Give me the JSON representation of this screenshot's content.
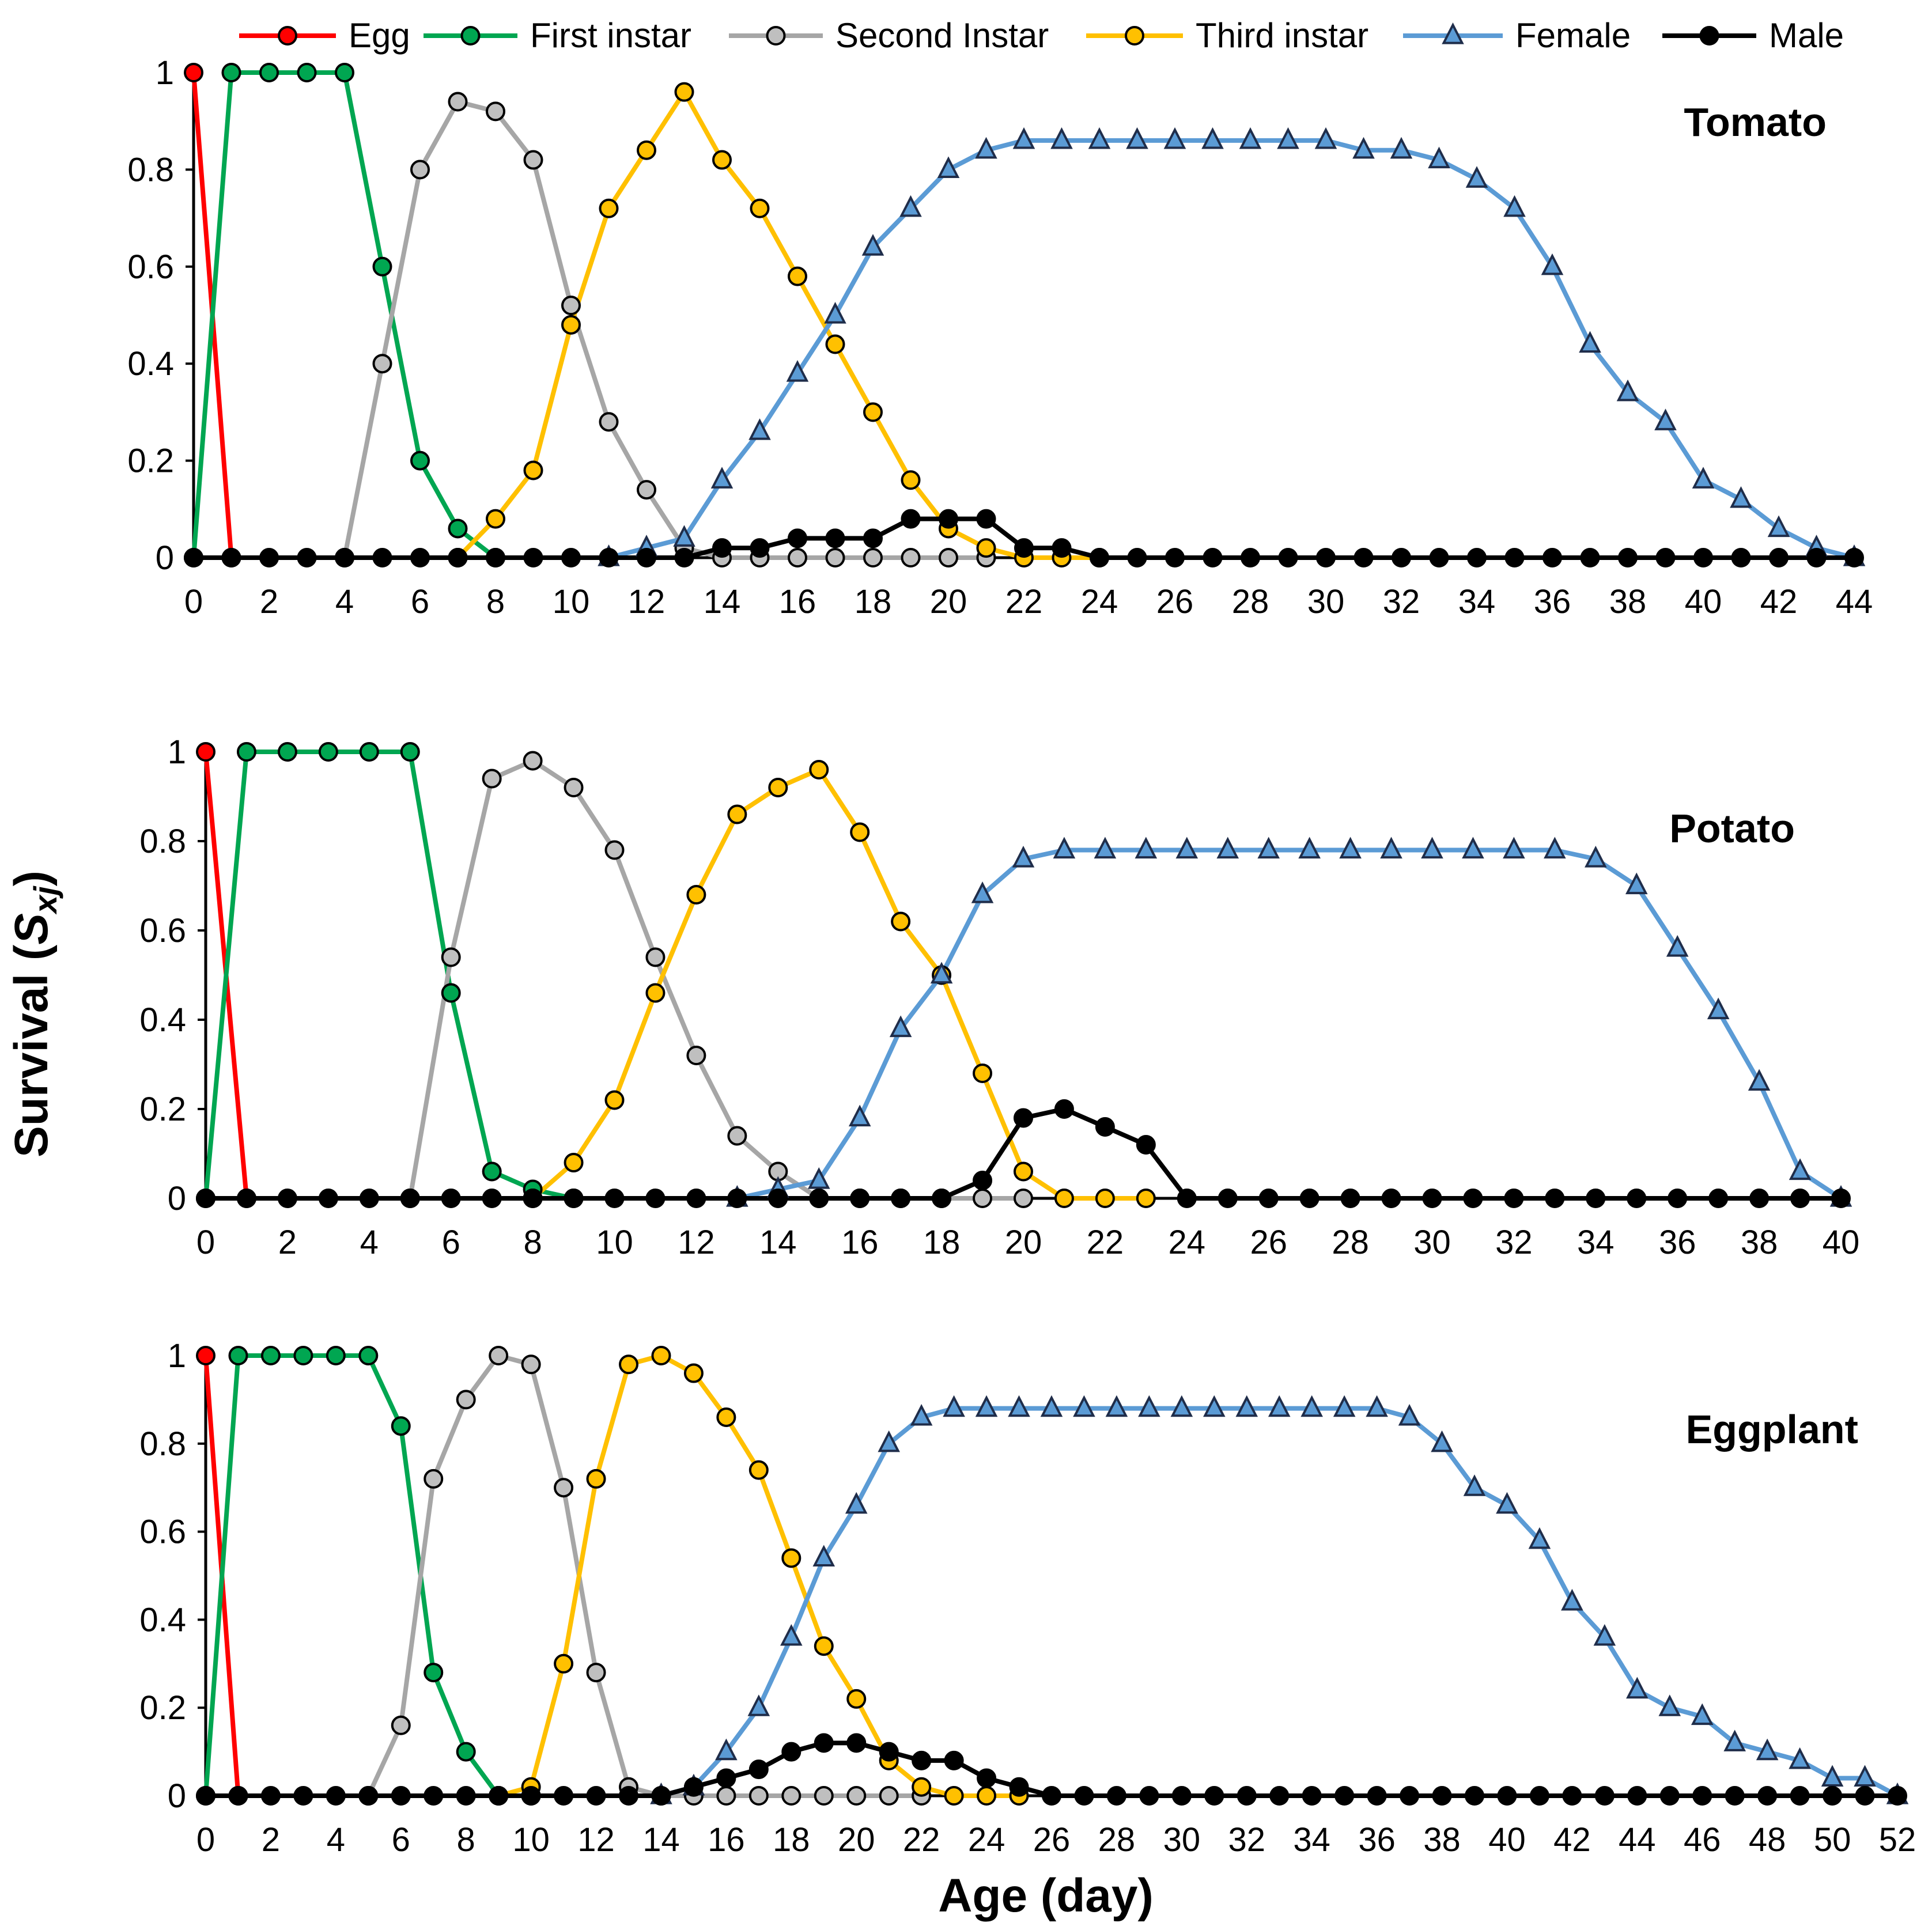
{
  "chart_data": {
    "type": "line",
    "title": "",
    "xlabel": "Age (day)",
    "ylabel": "Survival",
    "ylabel_symbol": "S",
    "ylabel_subscript": "xj",
    "yticks": [
      "0",
      "0.2",
      "0.4",
      "0.6",
      "0.8",
      "1"
    ],
    "ylim": [
      0,
      1
    ],
    "grid": false,
    "legend_position": "top",
    "series_styles": [
      {
        "name": "Egg",
        "color": "#FF0000",
        "fill": "#FF0000",
        "marker": "circle"
      },
      {
        "name": "First instar",
        "color": "#00A651",
        "fill": "#00A651",
        "marker": "circle"
      },
      {
        "name": "Second Instar",
        "color": "#A6A6A6",
        "fill": "#BFBFBF",
        "marker": "circle"
      },
      {
        "name": "Third instar",
        "color": "#FFC000",
        "fill": "#FFC000",
        "marker": "circle"
      },
      {
        "name": "Female",
        "color": "#5B9BD5",
        "fill": "#5B9BD5",
        "marker": "triangle"
      },
      {
        "name": "Male",
        "color": "#000000",
        "fill": "#000000",
        "marker": "circle"
      }
    ],
    "panels": [
      {
        "title": "Tomato",
        "xlim": [
          0,
          44
        ],
        "xticks": [
          "0",
          "2",
          "4",
          "6",
          "8",
          "10",
          "12",
          "14",
          "16",
          "18",
          "20",
          "22",
          "24",
          "26",
          "28",
          "30",
          "32",
          "34",
          "36",
          "38",
          "40",
          "42",
          "44"
        ],
        "series": [
          {
            "name": "Egg",
            "x": [
              0,
              1
            ],
            "y": [
              1,
              0
            ]
          },
          {
            "name": "First instar",
            "x": [
              0,
              1,
              2,
              3,
              4,
              5,
              6,
              7,
              8
            ],
            "y": [
              0,
              1,
              1,
              1,
              1,
              0.6,
              0.2,
              0.06,
              0
            ]
          },
          {
            "name": "Second Instar",
            "x": [
              4,
              5,
              6,
              7,
              8,
              9,
              10,
              11,
              12,
              13,
              14,
              15,
              16,
              17,
              18,
              19,
              20,
              21
            ],
            "y": [
              0,
              0.4,
              0.8,
              0.94,
              0.92,
              0.82,
              0.52,
              0.28,
              0.14,
              0.02,
              0,
              0,
              0,
              0,
              0,
              0,
              0,
              0
            ]
          },
          {
            "name": "Third instar",
            "x": [
              7,
              8,
              9,
              10,
              11,
              12,
              13,
              14,
              15,
              16,
              17,
              18,
              19,
              20,
              21,
              22,
              23,
              24
            ],
            "y": [
              0,
              0.08,
              0.18,
              0.48,
              0.72,
              0.84,
              0.96,
              0.82,
              0.72,
              0.58,
              0.44,
              0.3,
              0.16,
              0.06,
              0.02,
              0,
              0,
              0
            ]
          },
          {
            "name": "Female",
            "x": [
              11,
              12,
              13,
              14,
              15,
              16,
              17,
              18,
              19,
              20,
              21,
              22,
              23,
              24,
              25,
              26,
              27,
              28,
              29,
              30,
              31,
              32,
              33,
              34,
              35,
              36,
              37,
              38,
              39,
              40,
              41,
              42,
              43,
              44
            ],
            "y": [
              0,
              0.02,
              0.04,
              0.16,
              0.26,
              0.38,
              0.5,
              0.64,
              0.72,
              0.8,
              0.84,
              0.86,
              0.86,
              0.86,
              0.86,
              0.86,
              0.86,
              0.86,
              0.86,
              0.86,
              0.84,
              0.84,
              0.82,
              0.78,
              0.72,
              0.6,
              0.44,
              0.34,
              0.28,
              0.16,
              0.12,
              0.06,
              0.02,
              0
            ]
          },
          {
            "name": "Male",
            "x": [
              0,
              1,
              2,
              3,
              4,
              5,
              6,
              7,
              8,
              9,
              10,
              11,
              12,
              13,
              14,
              15,
              16,
              17,
              18,
              19,
              20,
              21,
              22,
              23,
              24,
              25,
              26,
              27,
              28,
              29,
              30,
              31,
              32,
              33,
              34,
              35,
              36,
              37,
              38,
              39,
              40,
              41,
              42,
              43,
              44
            ],
            "y": [
              0,
              0,
              0,
              0,
              0,
              0,
              0,
              0,
              0,
              0,
              0,
              0,
              0,
              0,
              0.02,
              0.02,
              0.04,
              0.04,
              0.04,
              0.08,
              0.08,
              0.08,
              0.02,
              0.02,
              0,
              0,
              0,
              0,
              0,
              0,
              0,
              0,
              0,
              0,
              0,
              0,
              0,
              0,
              0,
              0,
              0,
              0,
              0,
              0,
              0
            ]
          }
        ]
      },
      {
        "title": "Potato",
        "xlim": [
          0,
          40
        ],
        "xticks": [
          "0",
          "2",
          "4",
          "6",
          "8",
          "10",
          "12",
          "14",
          "16",
          "18",
          "20",
          "22",
          "24",
          "26",
          "28",
          "30",
          "32",
          "34",
          "36",
          "38",
          "40"
        ],
        "series": [
          {
            "name": "Egg",
            "x": [
              0,
              1
            ],
            "y": [
              1,
              0
            ]
          },
          {
            "name": "First instar",
            "x": [
              0,
              1,
              2,
              3,
              4,
              5,
              6,
              7,
              8,
              9
            ],
            "y": [
              0,
              1,
              1,
              1,
              1,
              1,
              0.46,
              0.06,
              0.02,
              0
            ]
          },
          {
            "name": "Second Instar",
            "x": [
              5,
              6,
              7,
              8,
              9,
              10,
              11,
              12,
              13,
              14,
              15,
              16,
              17,
              18,
              19,
              20
            ],
            "y": [
              0,
              0.54,
              0.94,
              0.98,
              0.92,
              0.78,
              0.54,
              0.32,
              0.14,
              0.06,
              0,
              0,
              0,
              0,
              0,
              0
            ]
          },
          {
            "name": "Third instar",
            "x": [
              8,
              9,
              10,
              11,
              12,
              13,
              14,
              15,
              16,
              17,
              18,
              19,
              20,
              21,
              22,
              23
            ],
            "y": [
              0,
              0.08,
              0.22,
              0.46,
              0.68,
              0.86,
              0.92,
              0.96,
              0.82,
              0.62,
              0.5,
              0.28,
              0.06,
              0,
              0,
              0
            ]
          },
          {
            "name": "Female",
            "x": [
              13,
              14,
              15,
              16,
              17,
              18,
              19,
              20,
              21,
              22,
              23,
              24,
              25,
              26,
              27,
              28,
              29,
              30,
              31,
              32,
              33,
              34,
              35,
              36,
              37,
              38,
              39,
              40
            ],
            "y": [
              0,
              0.02,
              0.04,
              0.18,
              0.38,
              0.5,
              0.68,
              0.76,
              0.78,
              0.78,
              0.78,
              0.78,
              0.78,
              0.78,
              0.78,
              0.78,
              0.78,
              0.78,
              0.78,
              0.78,
              0.78,
              0.76,
              0.7,
              0.56,
              0.42,
              0.26,
              0.06,
              0
            ]
          },
          {
            "name": "Male",
            "x": [
              0,
              1,
              2,
              3,
              4,
              5,
              6,
              7,
              8,
              9,
              10,
              11,
              12,
              13,
              14,
              15,
              16,
              17,
              18,
              19,
              20,
              21,
              22,
              23,
              24,
              25,
              26,
              27,
              28,
              29,
              30,
              31,
              32,
              33,
              34,
              35,
              36,
              37,
              38,
              39,
              40
            ],
            "y": [
              0,
              0,
              0,
              0,
              0,
              0,
              0,
              0,
              0,
              0,
              0,
              0,
              0,
              0,
              0,
              0,
              0,
              0,
              0,
              0.04,
              0.18,
              0.2,
              0.16,
              0.12,
              0,
              0,
              0,
              0,
              0,
              0,
              0,
              0,
              0,
              0,
              0,
              0,
              0,
              0,
              0,
              0,
              0
            ]
          }
        ]
      },
      {
        "title": "Eggplant",
        "xlim": [
          0,
          52
        ],
        "xticks": [
          "0",
          "2",
          "4",
          "6",
          "8",
          "10",
          "12",
          "14",
          "16",
          "18",
          "20",
          "22",
          "24",
          "26",
          "28",
          "30",
          "32",
          "34",
          "36",
          "38",
          "40",
          "42",
          "44",
          "46",
          "48",
          "50",
          "52"
        ],
        "series": [
          {
            "name": "Egg",
            "x": [
              0,
              1
            ],
            "y": [
              1,
              0
            ]
          },
          {
            "name": "First instar",
            "x": [
              0,
              1,
              2,
              3,
              4,
              5,
              6,
              7,
              8,
              9,
              10
            ],
            "y": [
              0,
              1,
              1,
              1,
              1,
              1,
              0.84,
              0.28,
              0.1,
              0,
              0
            ]
          },
          {
            "name": "Second Instar",
            "x": [
              5,
              6,
              7,
              8,
              9,
              10,
              11,
              12,
              13,
              14,
              15,
              16,
              17,
              18,
              19,
              20,
              21,
              22
            ],
            "y": [
              0,
              0.16,
              0.72,
              0.9,
              1,
              0.98,
              0.7,
              0.28,
              0.02,
              0,
              0,
              0,
              0,
              0,
              0,
              0,
              0,
              0
            ]
          },
          {
            "name": "Third instar",
            "x": [
              9,
              10,
              11,
              12,
              13,
              14,
              15,
              16,
              17,
              18,
              19,
              20,
              21,
              22,
              23,
              24,
              25
            ],
            "y": [
              0,
              0.02,
              0.3,
              0.72,
              0.98,
              1,
              0.96,
              0.86,
              0.74,
              0.54,
              0.34,
              0.22,
              0.08,
              0.02,
              0,
              0,
              0
            ]
          },
          {
            "name": "Female",
            "x": [
              14,
              15,
              16,
              17,
              18,
              19,
              20,
              21,
              22,
              23,
              24,
              25,
              26,
              27,
              28,
              29,
              30,
              31,
              32,
              33,
              34,
              35,
              36,
              37,
              38,
              39,
              40,
              41,
              42,
              43,
              44,
              45,
              46,
              47,
              48,
              49,
              50,
              51,
              52
            ],
            "y": [
              0,
              0.02,
              0.1,
              0.2,
              0.36,
              0.54,
              0.66,
              0.8,
              0.86,
              0.88,
              0.88,
              0.88,
              0.88,
              0.88,
              0.88,
              0.88,
              0.88,
              0.88,
              0.88,
              0.88,
              0.88,
              0.88,
              0.88,
              0.86,
              0.8,
              0.7,
              0.66,
              0.58,
              0.44,
              0.36,
              0.24,
              0.2,
              0.18,
              0.12,
              0.1,
              0.08,
              0.04,
              0.04,
              0
            ]
          },
          {
            "name": "Male",
            "x": [
              0,
              1,
              2,
              3,
              4,
              5,
              6,
              7,
              8,
              9,
              10,
              11,
              12,
              13,
              14,
              15,
              16,
              17,
              18,
              19,
              20,
              21,
              22,
              23,
              24,
              25,
              26,
              27,
              28,
              29,
              30,
              31,
              32,
              33,
              34,
              35,
              36,
              37,
              38,
              39,
              40,
              41,
              42,
              43,
              44,
              45,
              46,
              47,
              48,
              49,
              50,
              51,
              52
            ],
            "y": [
              0,
              0,
              0,
              0,
              0,
              0,
              0,
              0,
              0,
              0,
              0,
              0,
              0,
              0,
              0,
              0.02,
              0.04,
              0.06,
              0.1,
              0.12,
              0.12,
              0.1,
              0.08,
              0.08,
              0.04,
              0.02,
              0,
              0,
              0,
              0,
              0,
              0,
              0,
              0,
              0,
              0,
              0,
              0,
              0,
              0,
              0,
              0,
              0,
              0,
              0,
              0,
              0,
              0,
              0,
              0,
              0,
              0,
              0
            ]
          }
        ]
      }
    ]
  }
}
